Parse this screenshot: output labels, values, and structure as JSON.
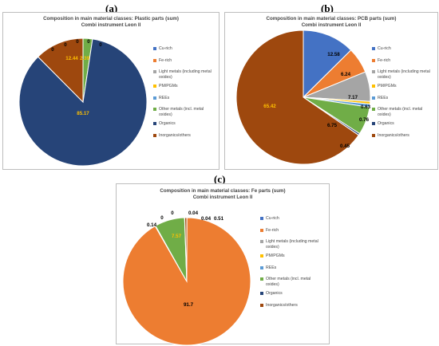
{
  "legend": [
    "Cu-rich",
    "Fe-rich",
    "Light metals (including metal oxides)",
    "PM/PGMs",
    "REEs",
    "Other metals (incl. metal oxides)",
    "Organics",
    "Inorganics/others"
  ],
  "colors": [
    "#4472C4",
    "#ED7D31",
    "#A5A5A5",
    "#FFC000",
    "#5B9BD5",
    "#70AD47",
    "#264478",
    "#9E480E"
  ],
  "chart_data": [
    {
      "type": "pie",
      "panel": "(a)",
      "title": "Composition in main material classes: Plastic parts (sum)",
      "subtitle": "Combi instrument Leon II",
      "categories": [
        "Cu-rich",
        "Fe-rich",
        "Light metals (including metal oxides)",
        "PM/PGMs",
        "REEs",
        "Other metals (incl. metal oxides)",
        "Organics",
        "Inorganics/others"
      ],
      "values": [
        0,
        0,
        0,
        0,
        0,
        2.39,
        85.17,
        12.44
      ],
      "labels": [
        "0",
        "0",
        "0",
        "0",
        "0",
        "2.39",
        "85.17",
        "12.44"
      ]
    },
    {
      "type": "pie",
      "panel": "(b)",
      "title": "Composition in main material classes: PCB parts (sum)",
      "subtitle": "Combi instrument Leon II",
      "categories": [
        "Cu-rich",
        "Fe-rich",
        "Light metals (including metal oxides)",
        "PM/PGMs",
        "REEs",
        "Other metals (incl. metal oxides)",
        "Organics",
        "Inorganics/others"
      ],
      "values": [
        12.58,
        6.24,
        7.17,
        0.63,
        0.76,
        6.75,
        0.45,
        65.42
      ],
      "labels": [
        "12.58",
        "6.24",
        "7.17",
        "0.63",
        "0.76",
        "6.75",
        "0.45",
        "65.42"
      ]
    },
    {
      "type": "pie",
      "panel": "(c)",
      "title": "Composition in main material classes: Fe parts (sum)",
      "subtitle": "Combi instrument Leon II",
      "categories": [
        "Cu-rich",
        "Fe-rich",
        "Light metals (including metal oxides)",
        "PM/PGMs",
        "REEs",
        "Other metals (incl. metal oxides)",
        "Organics",
        "Inorganics/others"
      ],
      "values": [
        0.04,
        91.7,
        0.14,
        0,
        0,
        7.57,
        0.04,
        0.51
      ],
      "labels": [
        "0.04",
        "91.7",
        "0.14",
        "0",
        "0",
        "7.57",
        "0.04",
        "0.51"
      ]
    }
  ]
}
